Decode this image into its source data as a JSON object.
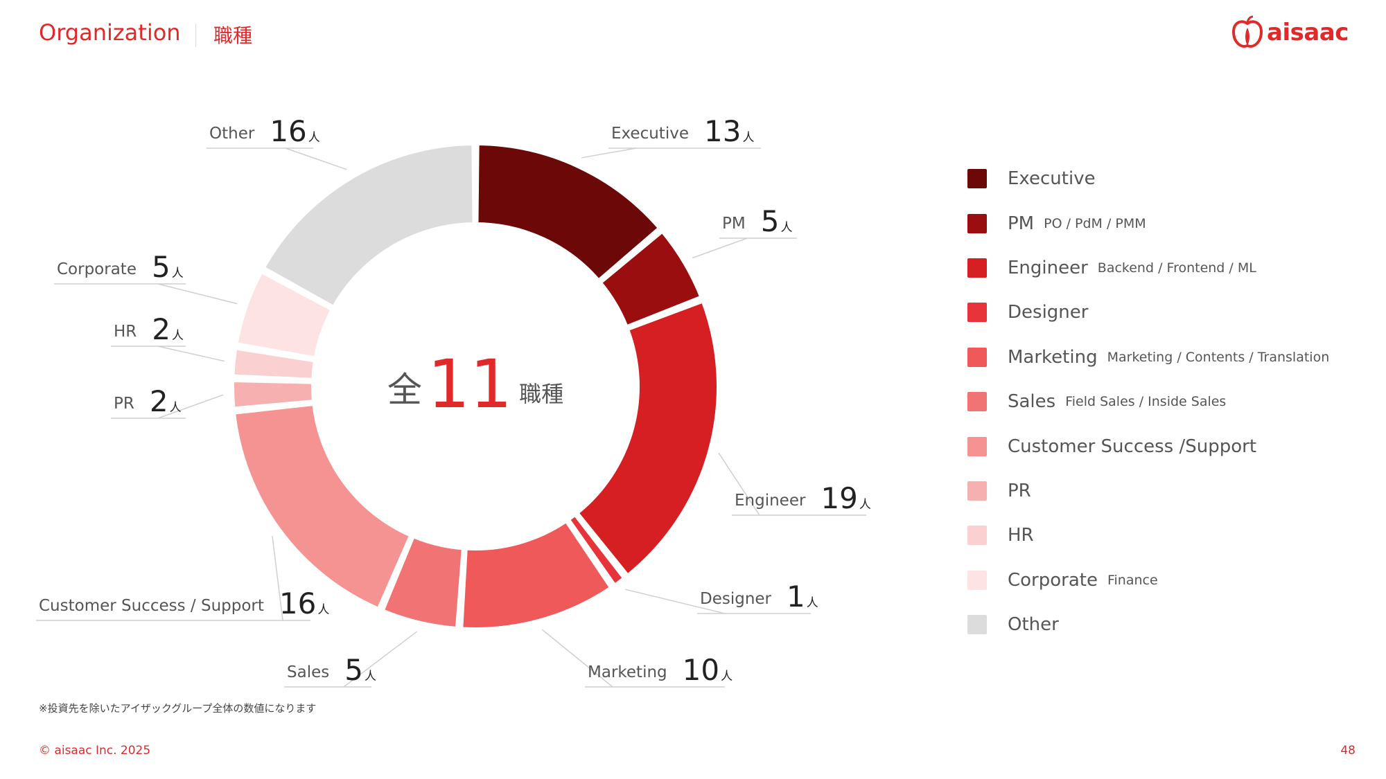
{
  "header": {
    "title": "Organization",
    "subtitle": "職種"
  },
  "logo": {
    "text": "aisaac",
    "icon": "apple-logo-icon"
  },
  "chart_data": {
    "type": "pie",
    "donut": true,
    "center_prefix": "全",
    "center_value": "11",
    "center_suffix": "職種",
    "unit": "人",
    "slices": [
      {
        "name": "Executive",
        "value": 13,
        "color": "#6c0808"
      },
      {
        "name": "PM",
        "value": 5,
        "color": "#9a0e10"
      },
      {
        "name": "Engineer",
        "value": 19,
        "color": "#d51f22"
      },
      {
        "name": "Designer",
        "value": 1,
        "color": "#e7333a"
      },
      {
        "name": "Marketing",
        "value": 10,
        "color": "#ef5959"
      },
      {
        "name": "Sales",
        "value": 5,
        "color": "#f27373"
      },
      {
        "name": "Customer Success / Support",
        "value": 16,
        "color": "#f59393"
      },
      {
        "name": "PR",
        "value": 2,
        "color": "#f7b0b0"
      },
      {
        "name": "HR",
        "value": 2,
        "color": "#fad0d0"
      },
      {
        "name": "Corporate",
        "value": 5,
        "color": "#fde3e3"
      },
      {
        "name": "Other",
        "value": 16,
        "color": "#dcdcdc"
      }
    ]
  },
  "legend": [
    {
      "name": "Executive",
      "sub": "",
      "color": "#6c0808"
    },
    {
      "name": "PM",
      "sub": "PO / PdM / PMM",
      "color": "#9a0e10"
    },
    {
      "name": "Engineer",
      "sub": "Backend / Frontend / ML",
      "color": "#d51f22"
    },
    {
      "name": "Designer",
      "sub": "",
      "color": "#e7333a"
    },
    {
      "name": "Marketing",
      "sub": "Marketing / Contents / Translation",
      "color": "#ef5959"
    },
    {
      "name": "Sales",
      "sub": "Field Sales / Inside Sales",
      "color": "#f27373"
    },
    {
      "name": "Customer Success /Support",
      "sub": "",
      "color": "#f59393"
    },
    {
      "name": "PR",
      "sub": "",
      "color": "#f7b0b0"
    },
    {
      "name": "HR",
      "sub": "",
      "color": "#fad0d0"
    },
    {
      "name": "Corporate",
      "sub": "Finance",
      "color": "#fde3e3"
    },
    {
      "name": "Other",
      "sub": "",
      "color": "#dcdcdc"
    }
  ],
  "footer": {
    "note": "※投資先を除いたアイザックグループ全体の数値になります",
    "copyright": "© aisaac Inc. 2025",
    "page": "48"
  }
}
